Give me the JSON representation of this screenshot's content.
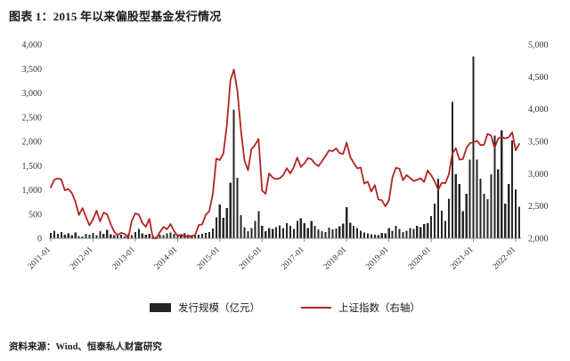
{
  "title": "图表 1：2015 年以来偏股型基金发行情况",
  "footer": "资料来源：Wind、恒泰私人财富研究",
  "chart_data": {
    "type": "bar",
    "subtype": "combo-bar-line",
    "title": "图表 1：2015 年以来偏股型基金发行情况",
    "x_tick_labels": [
      "2011-01",
      "2012-01",
      "2013-01",
      "2014-01",
      "2015-01",
      "2016-01",
      "2017-01",
      "2018-01",
      "2019-01",
      "2020-01",
      "2021-01",
      "2022-01"
    ],
    "left_axis": {
      "min": 0,
      "max": 4000,
      "step": 500
    },
    "right_axis": {
      "min": 2000,
      "max": 5000,
      "step": 500
    },
    "legend_position": "bottom",
    "grid": false,
    "colors": {
      "bar": "#262626",
      "line": "#b12422"
    },
    "categories": [
      "2011-01",
      "2011-02",
      "2011-03",
      "2011-04",
      "2011-05",
      "2011-06",
      "2011-07",
      "2011-08",
      "2011-09",
      "2011-10",
      "2011-11",
      "2011-12",
      "2012-01",
      "2012-02",
      "2012-03",
      "2012-04",
      "2012-05",
      "2012-06",
      "2012-07",
      "2012-08",
      "2012-09",
      "2012-10",
      "2012-11",
      "2012-12",
      "2013-01",
      "2013-02",
      "2013-03",
      "2013-04",
      "2013-05",
      "2013-06",
      "2013-07",
      "2013-08",
      "2013-09",
      "2013-10",
      "2013-11",
      "2013-12",
      "2014-01",
      "2014-02",
      "2014-03",
      "2014-04",
      "2014-05",
      "2014-06",
      "2014-07",
      "2014-08",
      "2014-09",
      "2014-10",
      "2014-11",
      "2014-12",
      "2015-01",
      "2015-02",
      "2015-03",
      "2015-04",
      "2015-05",
      "2015-06",
      "2015-07",
      "2015-08",
      "2015-09",
      "2015-10",
      "2015-11",
      "2015-12",
      "2016-01",
      "2016-02",
      "2016-03",
      "2016-04",
      "2016-05",
      "2016-06",
      "2016-07",
      "2016-08",
      "2016-09",
      "2016-10",
      "2016-11",
      "2016-12",
      "2017-01",
      "2017-02",
      "2017-03",
      "2017-04",
      "2017-05",
      "2017-06",
      "2017-07",
      "2017-08",
      "2017-09",
      "2017-10",
      "2017-11",
      "2017-12",
      "2018-01",
      "2018-02",
      "2018-03",
      "2018-04",
      "2018-05",
      "2018-06",
      "2018-07",
      "2018-08",
      "2018-09",
      "2018-10",
      "2018-11",
      "2018-12",
      "2019-01",
      "2019-02",
      "2019-03",
      "2019-04",
      "2019-05",
      "2019-06",
      "2019-07",
      "2019-08",
      "2019-09",
      "2019-10",
      "2019-11",
      "2019-12",
      "2020-01",
      "2020-02",
      "2020-03",
      "2020-04",
      "2020-05",
      "2020-06",
      "2020-07",
      "2020-08",
      "2020-09",
      "2020-10",
      "2020-11",
      "2020-12",
      "2021-01",
      "2021-02",
      "2021-03",
      "2021-04",
      "2021-05",
      "2021-06",
      "2021-07",
      "2021-08",
      "2021-09",
      "2021-10",
      "2021-11",
      "2021-12",
      "2022-01",
      "2022-02"
    ],
    "series": [
      {
        "name": "发行规模（亿元）",
        "type": "bar",
        "axis": "left",
        "values": [
          110,
          160,
          90,
          130,
          70,
          100,
          60,
          120,
          50,
          40,
          90,
          70,
          110,
          60,
          150,
          90,
          170,
          80,
          60,
          50,
          70,
          40,
          80,
          60,
          130,
          190,
          100,
          70,
          90,
          50,
          40,
          70,
          60,
          100,
          120,
          90,
          80,
          60,
          100,
          70,
          60,
          50,
          70,
          90,
          110,
          130,
          200,
          430,
          700,
          420,
          620,
          1150,
          2650,
          1250,
          480,
          230,
          150,
          210,
          360,
          560,
          260,
          150,
          210,
          190,
          230,
          270,
          210,
          310,
          260,
          190,
          360,
          410,
          310,
          210,
          360,
          260,
          180,
          150,
          130,
          220,
          180,
          200,
          250,
          300,
          640,
          320,
          260,
          210,
          160,
          120,
          100,
          80,
          70,
          60,
          110,
          100,
          210,
          160,
          260,
          190,
          130,
          160,
          210,
          190,
          260,
          230,
          290,
          310,
          460,
          720,
          1230,
          570,
          360,
          820,
          2820,
          1320,
          1120,
          560,
          920,
          1620,
          3750,
          1620,
          1230,
          920,
          810,
          1320,
          2120,
          1420,
          2230,
          720,
          1120,
          2020,
          1010,
          650
        ]
      },
      {
        "name": "上证指数（右轴）",
        "type": "line",
        "axis": "right",
        "values": [
          2790,
          2905,
          2928,
          2911,
          2743,
          2762,
          2701,
          2567,
          2359,
          2468,
          2333,
          2199,
          2293,
          2428,
          2262,
          2396,
          2372,
          2225,
          2103,
          2047,
          2086,
          2068,
          1980,
          2269,
          2385,
          2365,
          2237,
          2177,
          2301,
          1979,
          1994,
          2098,
          2175,
          2141,
          2220,
          2116,
          2033,
          2056,
          2033,
          2026,
          2039,
          2048,
          2202,
          2217,
          2364,
          2420,
          2683,
          3235,
          3210,
          3310,
          3748,
          4442,
          4612,
          4277,
          3664,
          3206,
          3053,
          3383,
          3445,
          3539,
          2738,
          2688,
          3004,
          2938,
          2917,
          2930,
          2979,
          3085,
          3005,
          3100,
          3250,
          3104,
          3159,
          3242,
          3223,
          3155,
          3117,
          3192,
          3273,
          3361,
          3349,
          3393,
          3317,
          3307,
          3481,
          3259,
          3169,
          3082,
          3095,
          2847,
          2876,
          2725,
          2821,
          2603,
          2588,
          2494,
          2585,
          2941,
          3091,
          3078,
          2899,
          2979,
          2933,
          2886,
          2905,
          2929,
          2872,
          3050,
          2977,
          2880,
          2750,
          2860,
          2852,
          2985,
          3310,
          3396,
          3218,
          3225,
          3392,
          3473,
          3483,
          3509,
          3442,
          3447,
          3615,
          3591,
          3397,
          3544,
          3568,
          3547,
          3564,
          3640,
          3361,
          3462
        ]
      }
    ]
  }
}
